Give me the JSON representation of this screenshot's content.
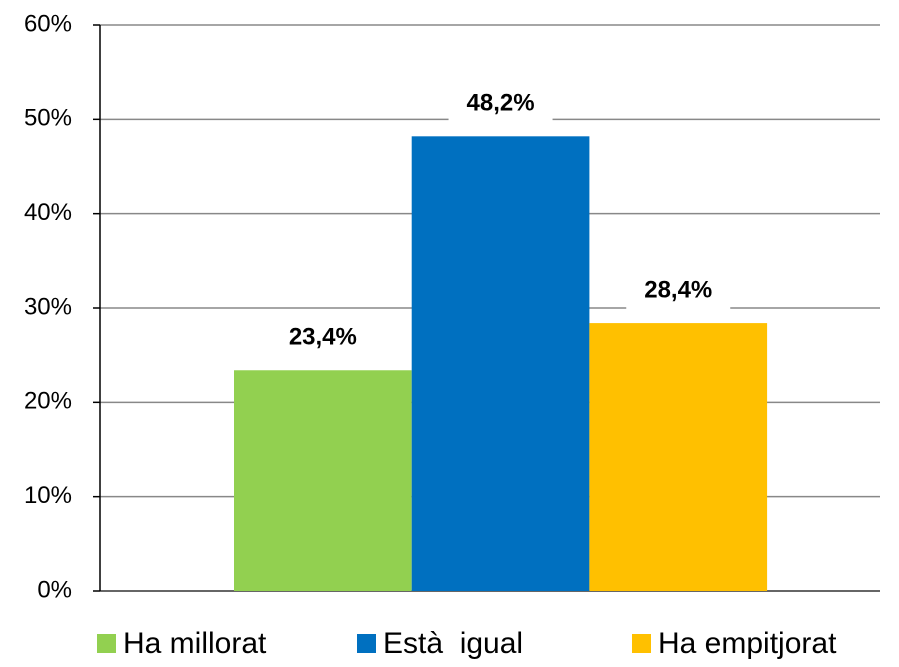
{
  "chart_data": {
    "type": "bar",
    "categories": [
      null
    ],
    "series": [
      {
        "name": "Ha millorat",
        "color": "#92d050",
        "values": [
          23.4
        ],
        "value_labels": [
          "23,4%"
        ]
      },
      {
        "name": "Està  igual",
        "color": "#0070c0",
        "values": [
          48.2
        ],
        "value_labels": [
          "48,2%"
        ]
      },
      {
        "name": "Ha empitjorat",
        "color": "#ffc000",
        "values": [
          28.4
        ],
        "value_labels": [
          "28,4%"
        ]
      }
    ],
    "ylim": [
      0,
      60
    ],
    "yticks": [
      {
        "value": 0,
        "label": "0%"
      },
      {
        "value": 10,
        "label": "10%"
      },
      {
        "value": 20,
        "label": "20%"
      },
      {
        "value": 30,
        "label": "30%"
      },
      {
        "value": 40,
        "label": "40%"
      },
      {
        "value": 50,
        "label": "50%"
      },
      {
        "value": 60,
        "label": "60%"
      }
    ],
    "grid": true,
    "legend": "bottom"
  }
}
